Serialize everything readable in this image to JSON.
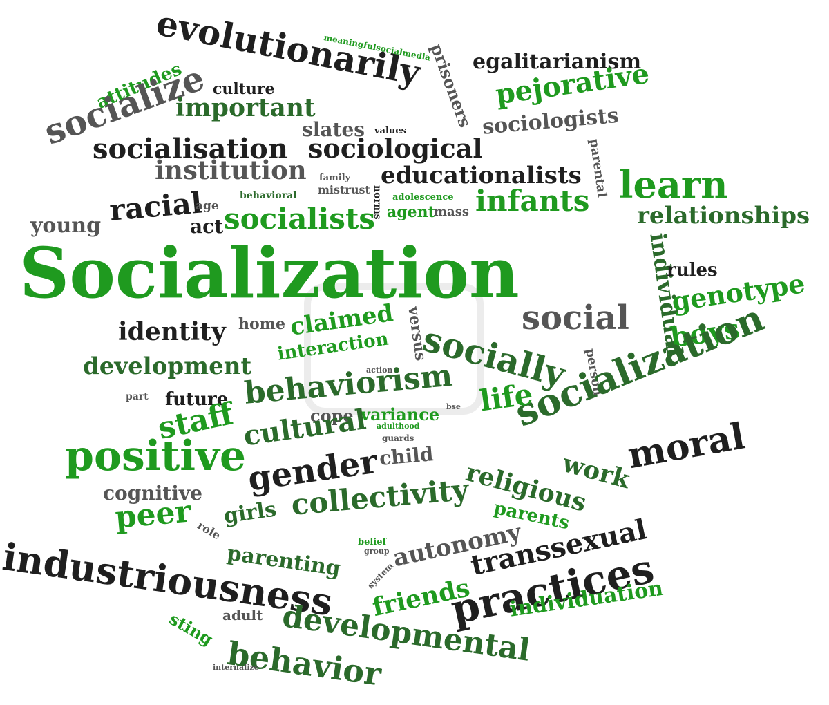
{
  "colors": {
    "green": "#1f9a1f",
    "dark_green": "#2b6a2b",
    "black": "#1f1f1f",
    "gray": "#555555",
    "background": "#ffffff"
  },
  "words": [
    {
      "text": "Socialization",
      "color": "green"
    },
    {
      "text": "evolutionarily",
      "color": "black"
    },
    {
      "text": "meaningfulsocialmedia",
      "color": "green"
    },
    {
      "text": "prisoners",
      "color": "gray"
    },
    {
      "text": "egalitarianism",
      "color": "black"
    },
    {
      "text": "attitudes",
      "color": "green"
    },
    {
      "text": "socialize",
      "color": "gray"
    },
    {
      "text": "culture",
      "color": "black"
    },
    {
      "text": "important",
      "color": "dark_green"
    },
    {
      "text": "pejorative",
      "color": "green"
    },
    {
      "text": "slates",
      "color": "gray"
    },
    {
      "text": "values",
      "color": "black"
    },
    {
      "text": "socialisation",
      "color": "black"
    },
    {
      "text": "sociological",
      "color": "black"
    },
    {
      "text": "sociologists",
      "color": "gray"
    },
    {
      "text": "parental",
      "color": "gray"
    },
    {
      "text": "institution",
      "color": "gray"
    },
    {
      "text": "family",
      "color": "gray"
    },
    {
      "text": "educationalists",
      "color": "black"
    },
    {
      "text": "learn",
      "color": "green"
    },
    {
      "text": "behavioral",
      "color": "dark_green"
    },
    {
      "text": "mistrust",
      "color": "gray"
    },
    {
      "text": "norms",
      "color": "black"
    },
    {
      "text": "adolescence",
      "color": "green"
    },
    {
      "text": "racial",
      "color": "black"
    },
    {
      "text": "age",
      "color": "gray"
    },
    {
      "text": "agent",
      "color": "green"
    },
    {
      "text": "mass",
      "color": "gray"
    },
    {
      "text": "infants",
      "color": "green"
    },
    {
      "text": "relationships",
      "color": "dark_green"
    },
    {
      "text": "young",
      "color": "gray"
    },
    {
      "text": "act",
      "color": "black"
    },
    {
      "text": "socialists",
      "color": "green"
    },
    {
      "text": "individual",
      "color": "dark_green"
    },
    {
      "text": "rules",
      "color": "black"
    },
    {
      "text": "genotype",
      "color": "green"
    },
    {
      "text": "social",
      "color": "gray"
    },
    {
      "text": "identity",
      "color": "black"
    },
    {
      "text": "home",
      "color": "gray"
    },
    {
      "text": "claimed",
      "color": "green"
    },
    {
      "text": "versus",
      "color": "gray"
    },
    {
      "text": "socially",
      "color": "dark_green"
    },
    {
      "text": "boys",
      "color": "green"
    },
    {
      "text": "development",
      "color": "dark_green"
    },
    {
      "text": "interaction",
      "color": "green"
    },
    {
      "text": "action",
      "color": "gray"
    },
    {
      "text": "person",
      "color": "gray"
    },
    {
      "text": "socialization",
      "color": "dark_green"
    },
    {
      "text": "part",
      "color": "gray"
    },
    {
      "text": "future",
      "color": "black"
    },
    {
      "text": "behaviorism",
      "color": "dark_green"
    },
    {
      "text": "life",
      "color": "green"
    },
    {
      "text": "staff",
      "color": "green"
    },
    {
      "text": "cope",
      "color": "gray"
    },
    {
      "text": "variance",
      "color": "green"
    },
    {
      "text": "adulthood",
      "color": "green"
    },
    {
      "text": "bse",
      "color": "gray"
    },
    {
      "text": "guards",
      "color": "gray"
    },
    {
      "text": "moral",
      "color": "black"
    },
    {
      "text": "positive",
      "color": "green"
    },
    {
      "text": "cultural",
      "color": "dark_green"
    },
    {
      "text": "child",
      "color": "gray"
    },
    {
      "text": "work",
      "color": "dark_green"
    },
    {
      "text": "religious",
      "color": "dark_green"
    },
    {
      "text": "gender",
      "color": "black"
    },
    {
      "text": "cognitive",
      "color": "gray"
    },
    {
      "text": "peer",
      "color": "green"
    },
    {
      "text": "girls",
      "color": "dark_green"
    },
    {
      "text": "collectivity",
      "color": "dark_green"
    },
    {
      "text": "parents",
      "color": "green"
    },
    {
      "text": "role",
      "color": "gray"
    },
    {
      "text": "belief",
      "color": "green"
    },
    {
      "text": "group",
      "color": "gray"
    },
    {
      "text": "industriousness",
      "color": "black"
    },
    {
      "text": "parenting",
      "color": "dark_green"
    },
    {
      "text": "autonomy",
      "color": "gray"
    },
    {
      "text": "transsexual",
      "color": "black"
    },
    {
      "text": "system",
      "color": "gray"
    },
    {
      "text": "friends",
      "color": "green"
    },
    {
      "text": "practices",
      "color": "black"
    },
    {
      "text": "sting",
      "color": "green"
    },
    {
      "text": "adult",
      "color": "gray"
    },
    {
      "text": "developmental",
      "color": "dark_green"
    },
    {
      "text": "individuation",
      "color": "green"
    },
    {
      "text": "behavior",
      "color": "dark_green"
    },
    {
      "text": "internalize",
      "color": "gray"
    }
  ]
}
